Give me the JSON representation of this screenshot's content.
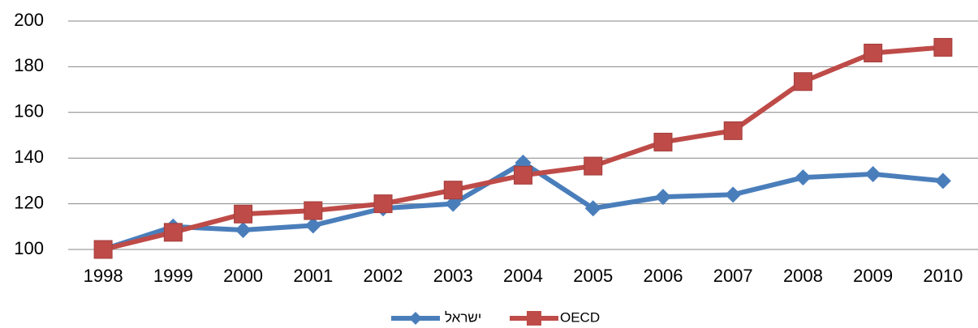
{
  "chart_data": {
    "type": "line",
    "categories": [
      "1998",
      "1999",
      "2000",
      "2001",
      "2002",
      "2003",
      "2004",
      "2005",
      "2006",
      "2007",
      "2008",
      "2009",
      "2010"
    ],
    "series": [
      {
        "name": "ישראל",
        "color": "#4a7ebb",
        "marker": "diamond",
        "values": [
          100,
          110,
          108.5,
          110.5,
          118,
          120,
          138,
          118,
          123,
          124,
          131.5,
          133,
          130
        ]
      },
      {
        "name": "OECD",
        "color": "#be4b48",
        "marker": "square",
        "values": [
          100,
          107.5,
          115.5,
          117,
          120,
          126,
          132.5,
          136.5,
          147,
          152,
          173.5,
          186,
          188.5
        ]
      }
    ],
    "ylim": [
      100,
      200
    ],
    "yticks": [
      100,
      120,
      140,
      160,
      180,
      200
    ],
    "grid": true,
    "legend": "bottom"
  }
}
